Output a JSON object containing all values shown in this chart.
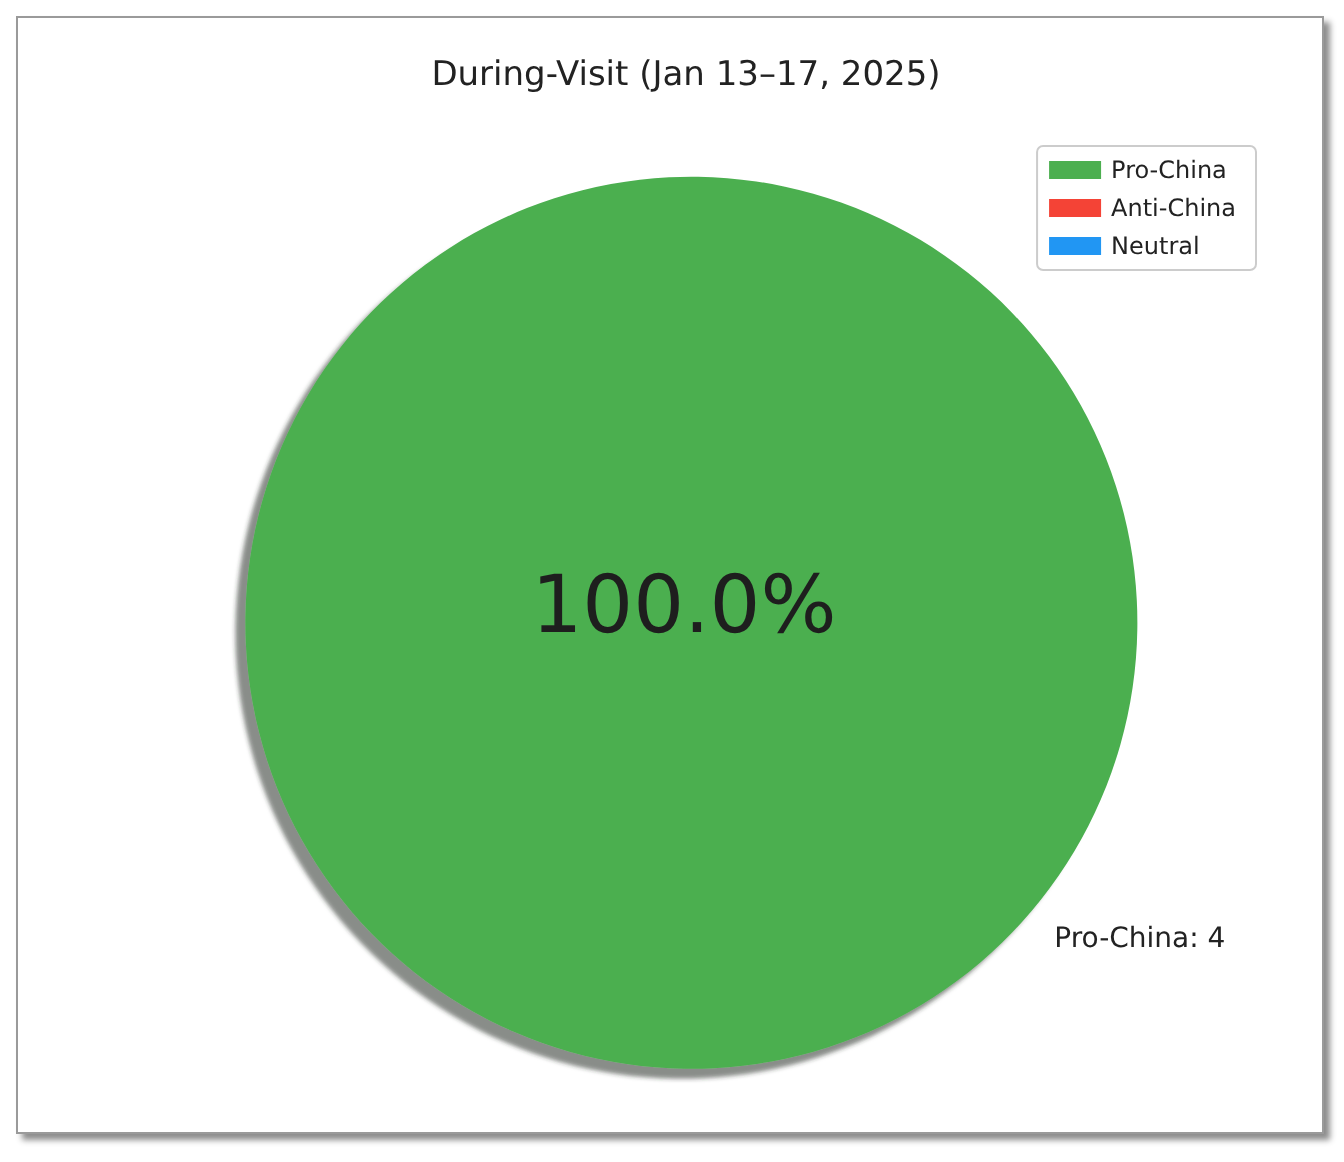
{
  "chart_data": {
    "type": "pie",
    "title": "During-Visit (Jan 13–17, 2025)",
    "categories": [
      "Pro-China",
      "Anti-China",
      "Neutral"
    ],
    "values": [
      4,
      0,
      0
    ],
    "colors": [
      "#4caf50",
      "#f44336",
      "#2196f3"
    ],
    "value_labels": [
      "Pro-China: 4",
      null,
      null
    ],
    "annotations": [
      "100.0%"
    ],
    "legend": "top right"
  }
}
